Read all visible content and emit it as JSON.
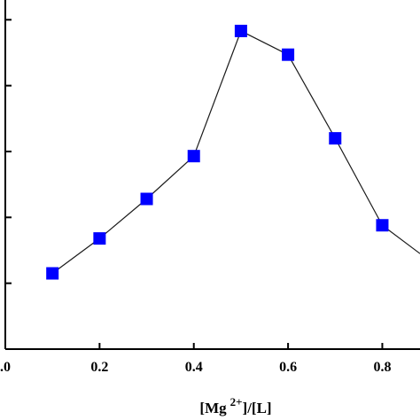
{
  "chart_data": {
    "type": "line",
    "title": "",
    "xlabel": {
      "prefix": "[Mg",
      "superscript": "2+",
      "suffix": "]/[L]"
    },
    "ylabel": "",
    "xlim": [
      0.0,
      0.88
    ],
    "ylim": [
      0,
      5.3
    ],
    "x_ticks": [
      0.0,
      0.2,
      0.4,
      0.6,
      0.8
    ],
    "x_tick_labels": [
      ".0",
      "0.2",
      "0.4",
      "0.6",
      "0.8"
    ],
    "y_ticks": [
      1,
      2,
      3,
      4,
      5
    ],
    "y_tick_labels": [],
    "grid": false,
    "legend": "none",
    "series": [
      {
        "x": [
          0.1,
          0.2,
          0.3,
          0.4,
          0.5,
          0.6,
          0.7,
          0.8,
          0.88
        ],
        "y": [
          1.15,
          1.68,
          2.28,
          2.93,
          4.83,
          4.47,
          3.2,
          1.88,
          1.45
        ],
        "marker": "square",
        "marker_color": "#0000ff",
        "line_color": "#1a1a1a",
        "marker_shown": [
          true,
          true,
          true,
          true,
          true,
          true,
          true,
          true,
          false
        ]
      }
    ]
  }
}
